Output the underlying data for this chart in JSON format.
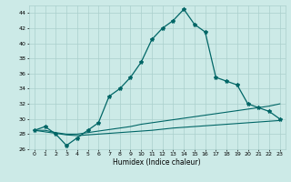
{
  "xlabel": "Humidex (Indice chaleur)",
  "xlim": [
    -0.5,
    23.5
  ],
  "ylim": [
    26,
    45
  ],
  "yticks": [
    26,
    28,
    30,
    32,
    34,
    36,
    38,
    40,
    42,
    44
  ],
  "xticks": [
    0,
    1,
    2,
    3,
    4,
    5,
    6,
    7,
    8,
    9,
    10,
    11,
    12,
    13,
    14,
    15,
    16,
    17,
    18,
    19,
    20,
    21,
    22,
    23
  ],
  "bg_color": "#cceae7",
  "grid_color": "#aacfcc",
  "line_color": "#006666",
  "marker": "*",
  "main_y": [
    28.5,
    29.0,
    28.0,
    26.5,
    27.5,
    28.5,
    29.5,
    33.0,
    34.0,
    35.5,
    37.5,
    40.5,
    42.0,
    43.0,
    44.5,
    42.5,
    41.5,
    35.5,
    35.0,
    34.5,
    32.0,
    31.5,
    31.0,
    30.0
  ],
  "line2_y": [
    28.5,
    28.5,
    28.2,
    28.0,
    28.0,
    28.2,
    28.4,
    28.6,
    28.8,
    29.0,
    29.3,
    29.5,
    29.7,
    29.9,
    30.1,
    30.3,
    30.5,
    30.7,
    30.9,
    31.1,
    31.3,
    31.5,
    31.7,
    32.0
  ],
  "line3_y": [
    28.5,
    28.3,
    28.1,
    27.9,
    27.8,
    27.9,
    28.0,
    28.1,
    28.2,
    28.3,
    28.4,
    28.5,
    28.65,
    28.8,
    28.9,
    29.0,
    29.1,
    29.2,
    29.3,
    29.4,
    29.5,
    29.6,
    29.7,
    29.8
  ]
}
